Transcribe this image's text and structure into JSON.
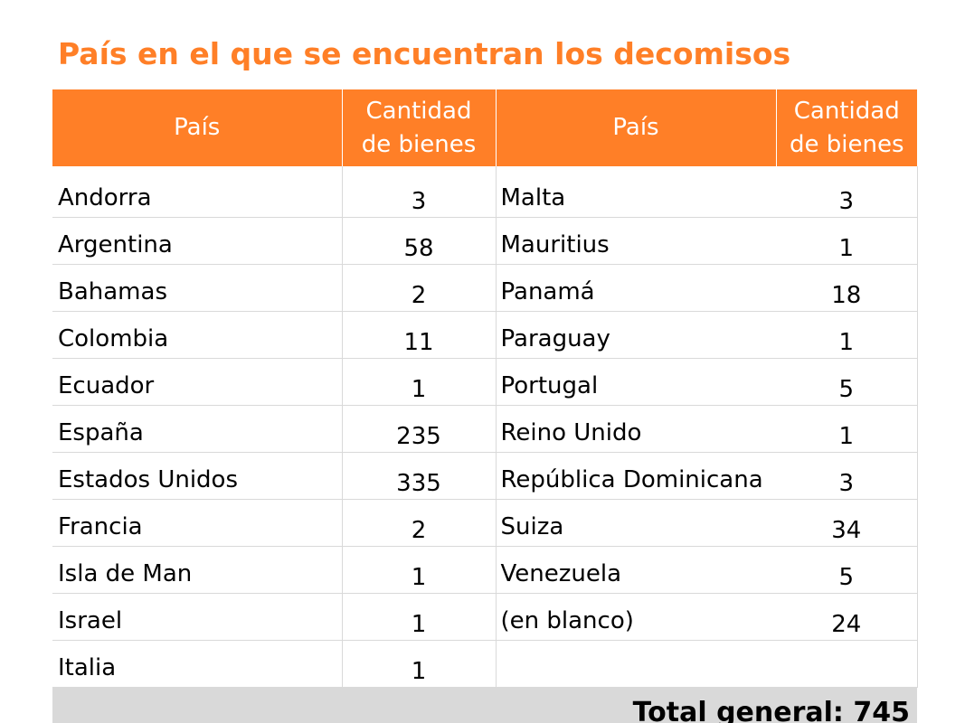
{
  "title": "País en el que se encuentran los decomisos",
  "headers": {
    "pais_left": "País",
    "cantidad_left_line1": "Cantidad",
    "cantidad_left_line2": "de bienes",
    "pais_right": "País",
    "cantidad_right_line1": "Cantidad",
    "cantidad_right_line2": "de bienes"
  },
  "rows": [
    {
      "left_country": "Andorra",
      "left_qty": "3",
      "right_country": "Malta",
      "right_qty": "3"
    },
    {
      "left_country": "Argentina",
      "left_qty": "58",
      "right_country": "Mauritius",
      "right_qty": "1"
    },
    {
      "left_country": "Bahamas",
      "left_qty": "2",
      "right_country": "Panamá",
      "right_qty": "18"
    },
    {
      "left_country": "Colombia",
      "left_qty": "11",
      "right_country": "Paraguay",
      "right_qty": "1"
    },
    {
      "left_country": "Ecuador",
      "left_qty": "1",
      "right_country": "Portugal",
      "right_qty": "5"
    },
    {
      "left_country": "España",
      "left_qty": "235",
      "right_country": "Reino Unido",
      "right_qty": "1"
    },
    {
      "left_country": "Estados Unidos",
      "left_qty": "335",
      "right_country": "República Dominicana",
      "right_qty": "3"
    },
    {
      "left_country": "Francia",
      "left_qty": "2",
      "right_country": "Suiza",
      "right_qty": "34"
    },
    {
      "left_country": "Isla de Man",
      "left_qty": "1",
      "right_country": "Venezuela",
      "right_qty": "5"
    },
    {
      "left_country": "Israel",
      "left_qty": "1",
      "right_country": "(en blanco)",
      "right_qty": "24"
    },
    {
      "left_country": "Italia",
      "left_qty": "1",
      "right_country": "",
      "right_qty": ""
    }
  ],
  "total_label": "Total general: 745",
  "colors": {
    "accent": "#FF7F27",
    "total_background": "#D9D9D9"
  }
}
